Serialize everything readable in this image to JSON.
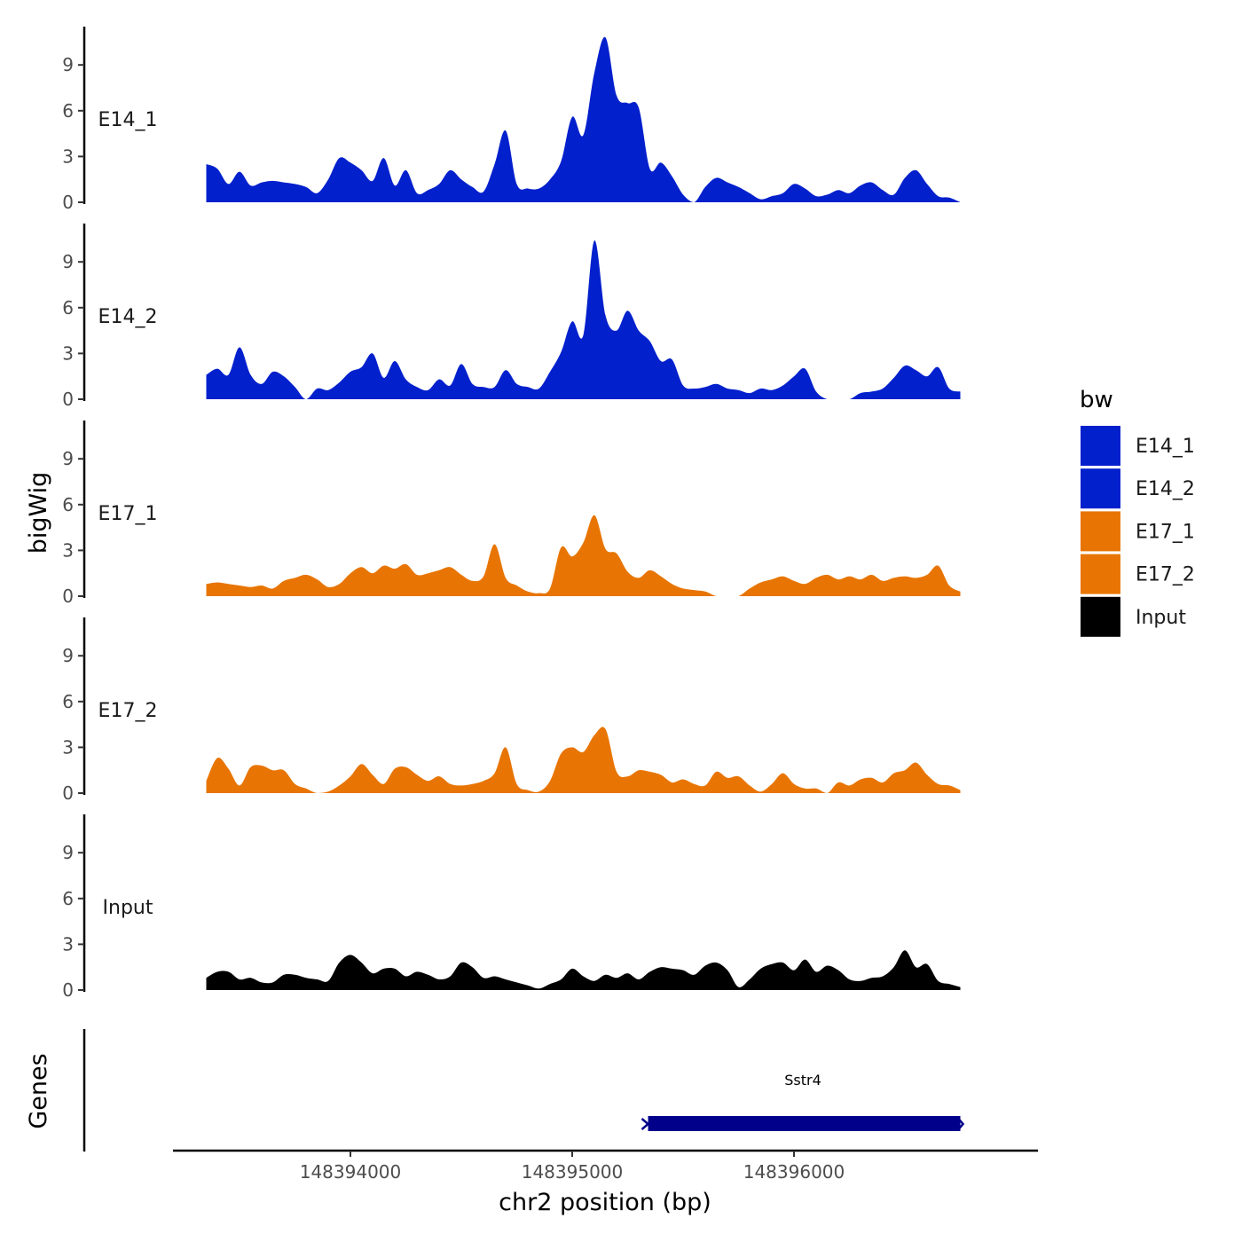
{
  "chart_data": {
    "type": "area",
    "xlabel": "chr2 position (bp)",
    "ylabel": "bigWig",
    "genes_label": "Genes",
    "xlim": [
      148393200,
      148397100
    ],
    "ylim": [
      0,
      11
    ],
    "x_ticks": [
      148394000,
      148395000,
      148396000
    ],
    "y_ticks": [
      0,
      3,
      6,
      9
    ],
    "legend": {
      "title": "bw",
      "entries": [
        {
          "name": "E14_1",
          "color": "#0320CD"
        },
        {
          "name": "E14_2",
          "color": "#0320CD"
        },
        {
          "name": "E17_1",
          "color": "#E87503"
        },
        {
          "name": "E17_2",
          "color": "#E87503"
        },
        {
          "name": "Input",
          "color": "#000000"
        }
      ]
    },
    "x": [
      148393350,
      148393400,
      148393450,
      148393500,
      148393550,
      148393600,
      148393650,
      148393700,
      148393750,
      148393800,
      148393850,
      148393900,
      148393950,
      148394000,
      148394050,
      148394100,
      148394150,
      148394200,
      148394250,
      148394300,
      148394350,
      148394400,
      148394450,
      148394500,
      148394550,
      148394600,
      148394650,
      148394700,
      148394750,
      148394800,
      148394850,
      148394900,
      148394950,
      148395000,
      148395050,
      148395100,
      148395150,
      148395200,
      148395250,
      148395300,
      148395350,
      148395400,
      148395450,
      148395500,
      148395550,
      148395600,
      148395650,
      148395700,
      148395750,
      148395800,
      148395850,
      148395900,
      148395950,
      148396000,
      148396050,
      148396100,
      148396150,
      148396200,
      148396250,
      148396300,
      148396350,
      148396400,
      148396450,
      148396500,
      148396550,
      148396600,
      148396650,
      148396700,
      148396750
    ],
    "series": [
      {
        "name": "E14_1",
        "color": "#0320CD",
        "values": [
          2.5,
          2.2,
          1.2,
          2.0,
          1.1,
          1.3,
          1.4,
          1.3,
          1.2,
          1.0,
          0.6,
          1.5,
          2.9,
          2.6,
          2.1,
          1.4,
          2.9,
          1.1,
          2.1,
          0.6,
          0.8,
          1.2,
          2.1,
          1.5,
          1.0,
          0.7,
          2.5,
          4.7,
          1.2,
          0.9,
          0.9,
          1.5,
          2.7,
          5.6,
          4.4,
          8.5,
          10.8,
          7.0,
          6.5,
          6.2,
          2.2,
          2.6,
          1.7,
          0.5,
          0.0,
          1.0,
          1.6,
          1.3,
          1.0,
          0.6,
          0.2,
          0.4,
          0.6,
          1.2,
          0.9,
          0.4,
          0.5,
          0.8,
          0.6,
          1.1,
          1.3,
          0.8,
          0.5,
          1.6,
          2.1,
          1.2,
          0.4,
          0.3,
          0.0
        ]
      },
      {
        "name": "E14_2",
        "color": "#0320CD",
        "values": [
          1.6,
          2.0,
          1.6,
          3.4,
          1.6,
          1.0,
          1.8,
          1.5,
          0.8,
          0.0,
          0.7,
          0.6,
          1.1,
          1.8,
          2.1,
          3.0,
          1.4,
          2.5,
          1.3,
          0.8,
          0.6,
          1.3,
          0.9,
          2.3,
          1.0,
          0.8,
          0.8,
          1.9,
          1.0,
          0.8,
          0.7,
          1.8,
          3.1,
          5.1,
          4.2,
          10.4,
          5.5,
          4.5,
          5.8,
          4.5,
          3.8,
          2.5,
          2.6,
          0.9,
          0.7,
          0.8,
          1.0,
          0.7,
          0.6,
          0.4,
          0.7,
          0.6,
          0.9,
          1.5,
          2.0,
          0.5,
          0.0,
          0.0,
          0.0,
          0.4,
          0.5,
          0.7,
          1.4,
          2.2,
          1.9,
          1.5,
          2.1,
          0.7,
          0.5
        ]
      },
      {
        "name": "E17_1",
        "color": "#E87503",
        "values": [
          0.8,
          0.9,
          0.8,
          0.7,
          0.6,
          0.7,
          0.5,
          1.0,
          1.2,
          1.4,
          1.1,
          0.6,
          0.8,
          1.5,
          1.9,
          1.5,
          2.0,
          1.8,
          2.1,
          1.4,
          1.5,
          1.7,
          1.9,
          1.4,
          1.0,
          1.3,
          3.4,
          1.2,
          0.7,
          0.3,
          0.2,
          0.5,
          3.2,
          2.6,
          3.5,
          5.3,
          3.1,
          2.8,
          1.6,
          1.2,
          1.7,
          1.3,
          0.8,
          0.5,
          0.4,
          0.3,
          0.0,
          0.0,
          0.0,
          0.5,
          0.9,
          1.1,
          1.3,
          1.0,
          0.8,
          1.2,
          1.4,
          1.1,
          1.3,
          1.1,
          1.4,
          1.0,
          1.2,
          1.3,
          1.2,
          1.4,
          2.0,
          0.7,
          0.3
        ]
      },
      {
        "name": "E17_2",
        "color": "#E87503",
        "values": [
          0.8,
          2.3,
          1.6,
          0.5,
          1.7,
          1.8,
          1.5,
          1.5,
          0.6,
          0.3,
          0.0,
          0.1,
          0.5,
          1.1,
          1.9,
          1.2,
          0.6,
          1.6,
          1.7,
          1.2,
          0.8,
          1.1,
          0.6,
          0.5,
          0.6,
          0.8,
          1.3,
          3.0,
          0.6,
          0.2,
          0.1,
          0.8,
          2.6,
          3.0,
          2.7,
          3.8,
          4.2,
          1.4,
          1.1,
          1.5,
          1.4,
          1.2,
          0.7,
          0.9,
          0.6,
          0.5,
          1.4,
          1.0,
          1.1,
          0.5,
          0.1,
          0.6,
          1.3,
          0.6,
          0.3,
          0.3,
          0.0,
          0.7,
          0.5,
          0.9,
          1.0,
          0.7,
          1.3,
          1.5,
          2.0,
          1.2,
          0.6,
          0.5,
          0.2
        ]
      },
      {
        "name": "Input",
        "color": "#000000",
        "values": [
          0.8,
          1.2,
          1.2,
          0.7,
          0.8,
          0.5,
          0.5,
          1.0,
          1.0,
          0.8,
          0.7,
          0.6,
          1.8,
          2.3,
          1.8,
          1.1,
          1.4,
          1.4,
          0.9,
          1.2,
          1.0,
          0.7,
          0.9,
          1.8,
          1.5,
          0.8,
          0.9,
          0.7,
          0.5,
          0.3,
          0.1,
          0.4,
          0.7,
          1.4,
          0.9,
          0.6,
          1.0,
          0.8,
          1.1,
          0.7,
          1.2,
          1.5,
          1.4,
          1.3,
          1.0,
          1.6,
          1.8,
          1.3,
          0.2,
          0.7,
          1.4,
          1.7,
          1.8,
          1.3,
          2.0,
          1.2,
          1.6,
          1.3,
          0.7,
          0.6,
          0.8,
          0.9,
          1.5,
          2.6,
          1.5,
          1.7,
          0.6,
          0.4,
          0.2
        ]
      }
    ],
    "genes": [
      {
        "name": "Sstr4",
        "start": 148395330,
        "end": 148396750
      }
    ]
  }
}
